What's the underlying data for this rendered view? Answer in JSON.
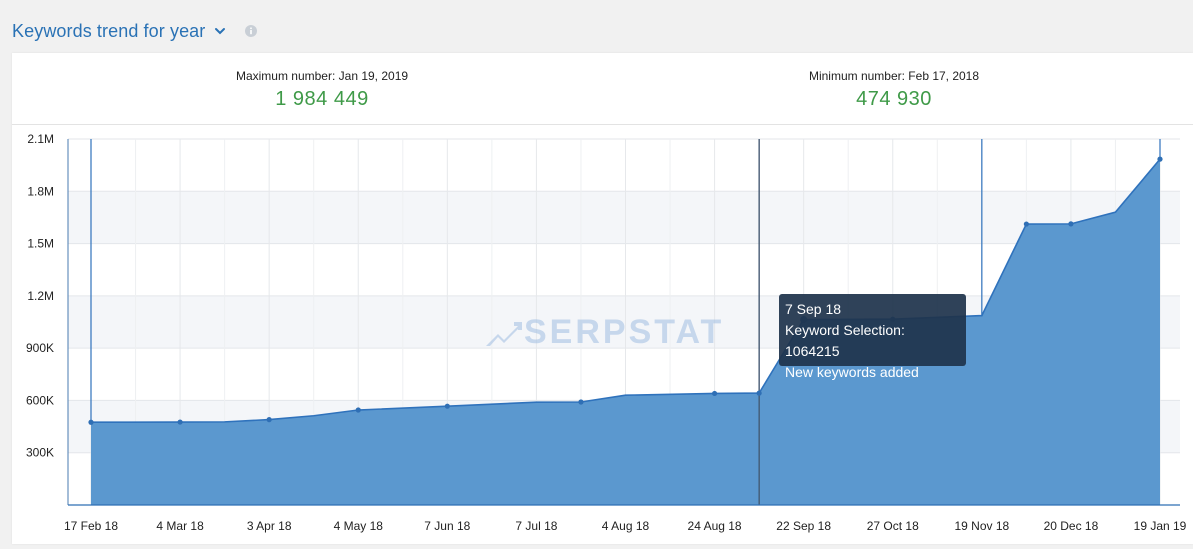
{
  "header": {
    "title": "Keywords trend for year"
  },
  "stats": {
    "max_label": "Maximum number: Jan 19, 2019",
    "max_value": "1 984 449",
    "min_label": "Minimum number: Feb 17, 2018",
    "min_value": "474 930"
  },
  "colors": {
    "title": "#2a72b5",
    "stat_value": "#3f9a48",
    "area_fill": "#5b98cf",
    "line": "#2f72bc"
  },
  "watermark": "SERPSTAT",
  "tooltip": {
    "date": "7 Sep 18",
    "line1": "Keyword Selection: 1064215",
    "line2": "New keywords added"
  },
  "chart_data": {
    "type": "area",
    "ylim": [
      0,
      2100000
    ],
    "y_ticks": [
      300000,
      600000,
      900000,
      1200000,
      1500000,
      1800000,
      2100000
    ],
    "y_tick_labels": [
      "300K",
      "600K",
      "900K",
      "1.2M",
      "1.5M",
      "1.8M",
      "2.1M"
    ],
    "x_tick_labels": [
      "17 Feb 18",
      "4 Mar 18",
      "3 Apr 18",
      "4 May 18",
      "7 Jun 18",
      "7 Jul 18",
      "4 Aug 18",
      "24 Aug 18",
      "22 Sep 18",
      "27 Oct 18",
      "19 Nov 18",
      "20 Dec 18",
      "19 Jan 19"
    ],
    "x": [
      0,
      1,
      1.5,
      2,
      2.5,
      3,
      4,
      5,
      5.5,
      6,
      7,
      7.5,
      8,
      9,
      10,
      10.5,
      11,
      11.5,
      12
    ],
    "values": [
      474930,
      476000,
      477000,
      490000,
      512000,
      545000,
      567000,
      590000,
      591000,
      630000,
      640000,
      642000,
      1064215,
      1066000,
      1087000,
      1612000,
      1613000,
      1680000,
      1984449
    ],
    "point_marked": [
      true,
      true,
      false,
      true,
      false,
      true,
      true,
      false,
      true,
      false,
      true,
      true,
      true,
      true,
      false,
      true,
      true,
      false,
      true
    ],
    "event_markers_x": [
      0,
      7.5,
      10,
      12
    ],
    "grid": true
  }
}
